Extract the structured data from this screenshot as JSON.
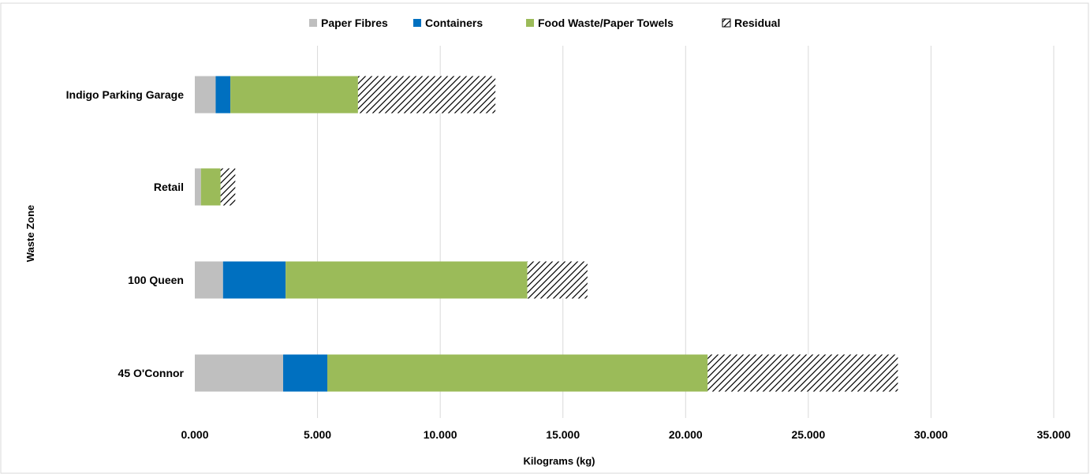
{
  "chart_data": {
    "type": "bar",
    "orientation": "horizontal",
    "stacked": true,
    "title": "",
    "xlabel": "Kilograms  (kg)",
    "ylabel": "Waste Zone",
    "xlim": [
      0,
      35000
    ],
    "x_ticks": [
      0,
      5000,
      10000,
      15000,
      20000,
      25000,
      30000,
      35000
    ],
    "x_tick_labels": [
      "0.000",
      "5.000",
      "10.000",
      "15.000",
      "20.000",
      "25.000",
      "30.000",
      "35.000"
    ],
    "categories": [
      "Indigo Parking Garage",
      "Retail",
      "100 Queen",
      "45 O'Connor"
    ],
    "series": [
      {
        "name": "Paper Fibres",
        "color": "#bfbfbf",
        "pattern": "solid",
        "values": [
          850,
          250,
          1150,
          3600
        ]
      },
      {
        "name": "Containers",
        "color": "#0070c0",
        "pattern": "solid",
        "values": [
          600,
          0,
          2550,
          1800
        ]
      },
      {
        "name": "Food Waste/Paper Towels",
        "color": "#9bbb59",
        "pattern": "solid",
        "values": [
          5200,
          800,
          9850,
          15500
        ]
      },
      {
        "name": "Residual",
        "color": "#000000",
        "pattern": "diagonal-hatch",
        "values": [
          5600,
          600,
          2450,
          7750
        ]
      }
    ],
    "grid": true,
    "legend_position": "top-center"
  }
}
